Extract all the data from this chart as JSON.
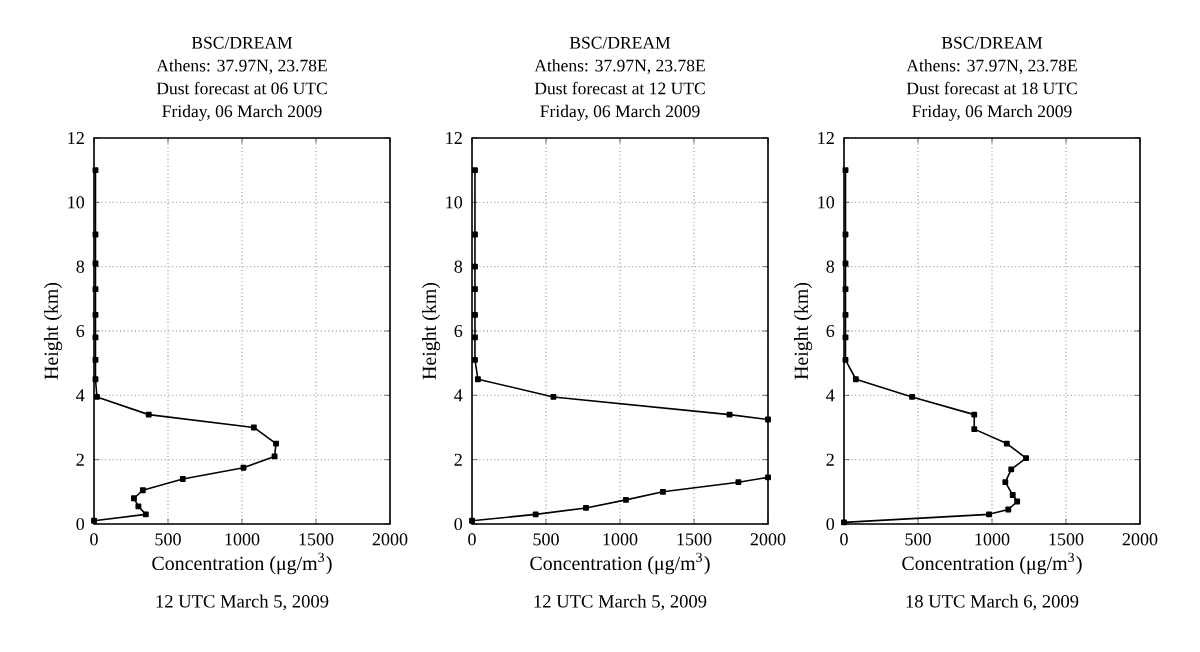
{
  "chart_data": [
    {
      "type": "line",
      "title": "BSC/DREAM",
      "subtitle": "Athens: 37.97N, 23.78E",
      "annotations": [
        "Dust forecast at 06 UTC",
        "Friday, 06 March 2009",
        "12 UTC March 5, 2009"
      ],
      "xlabel": "Concentration (μg/m$^{3}$)",
      "ylabel": "Height (km)",
      "xlim": [
        0,
        2000
      ],
      "ylim": [
        0,
        12
      ],
      "xticks": [
        0,
        500,
        1000,
        1500,
        2000
      ],
      "yticks": [
        0,
        2,
        4,
        6,
        8,
        10,
        12
      ],
      "grid": true,
      "marker": "square",
      "line_style": "solid",
      "series": [
        {
          "color": "#000000",
          "x": [
            0,
            350,
            300,
            270,
            330,
            600,
            1010,
            1220,
            1230,
            1080,
            370,
            20,
            10,
            10,
            10,
            10,
            10,
            10,
            10,
            10
          ],
          "values": [
            0.1,
            0.3,
            0.55,
            0.8,
            1.05,
            1.4,
            1.75,
            2.1,
            2.5,
            3.0,
            3.4,
            3.95,
            4.5,
            5.1,
            5.8,
            6.5,
            7.3,
            8.1,
            9.0,
            11.0
          ]
        }
      ]
    },
    {
      "type": "line",
      "title": "BSC/DREAM",
      "subtitle": "Athens: 37.97N, 23.78E",
      "annotations": [
        "Dust forecast at 12 UTC",
        "Friday, 06 March 2009",
        "12 UTC March 5, 2009"
      ],
      "xlabel": "Concentration (μg/m$^{3}$)",
      "ylabel": "Height (km)",
      "xlim": [
        0,
        2000
      ],
      "ylim": [
        0,
        12
      ],
      "xticks": [
        0,
        500,
        1000,
        1500,
        2000
      ],
      "yticks": [
        0,
        2,
        4,
        6,
        8,
        10,
        12
      ],
      "grid": true,
      "marker": "square",
      "line_style": "solid",
      "series": [
        {
          "color": "#000000",
          "x": [
            0,
            430,
            770,
            1040,
            1290,
            1800,
            2000
          ],
          "values": [
            0.1,
            0.3,
            0.5,
            0.75,
            1.0,
            1.3,
            1.45
          ]
        },
        {
          "color": "#000000",
          "x": [
            2000,
            1740,
            550,
            40,
            20,
            20,
            20,
            20,
            20,
            20,
            20
          ],
          "values": [
            3.25,
            3.4,
            3.95,
            4.5,
            5.1,
            5.8,
            6.5,
            7.3,
            8.0,
            9.0,
            11.0
          ]
        }
      ]
    },
    {
      "type": "line",
      "title": "BSC/DREAM",
      "subtitle": "Athens: 37.97N, 23.78E",
      "annotations": [
        "Dust forecast at 18 UTC",
        "Friday, 06 March 2009",
        "18 UTC March 6, 2009"
      ],
      "xlabel": "Concentration (μg/m$^{3}$)",
      "ylabel": "Height (km)",
      "xlim": [
        0,
        2000
      ],
      "ylim": [
        0,
        12
      ],
      "xticks": [
        0,
        500,
        1000,
        1500,
        2000
      ],
      "yticks": [
        0,
        2,
        4,
        6,
        8,
        10,
        12
      ],
      "grid": true,
      "marker": "square",
      "line_style": "solid",
      "series": [
        {
          "color": "#000000",
          "x": [
            0,
            980,
            1110,
            1170,
            1140,
            1090,
            1130,
            1230,
            1100,
            880,
            880,
            460,
            80,
            10,
            10,
            10,
            10,
            10,
            10,
            10
          ],
          "values": [
            0.05,
            0.3,
            0.45,
            0.7,
            0.9,
            1.3,
            1.7,
            2.05,
            2.5,
            2.95,
            3.4,
            3.95,
            4.5,
            5.1,
            5.8,
            6.5,
            7.3,
            8.1,
            9.0,
            11.0
          ]
        }
      ]
    }
  ]
}
